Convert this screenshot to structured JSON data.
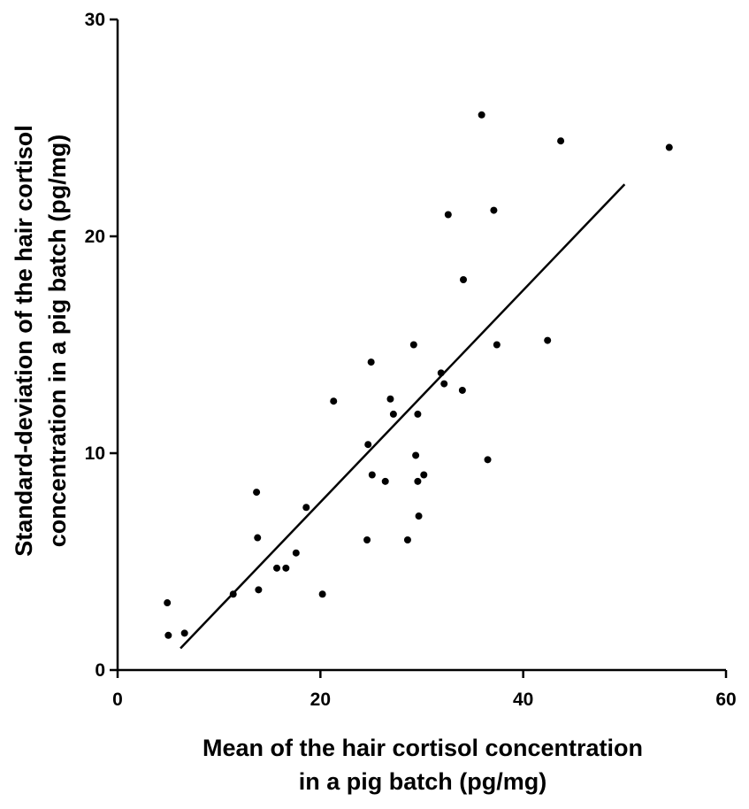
{
  "chart_data": {
    "type": "scatter",
    "xlabel_lines": [
      "Mean of the hair cortisol concentration",
      "in a pig batch (pg/mg)"
    ],
    "ylabel_lines": [
      "Standard-deviation of the hair cortisol",
      "concentration in a pig batch (pg/mg)"
    ],
    "xlim": [
      0,
      60
    ],
    "ylim": [
      0,
      30
    ],
    "xticks": [
      "0",
      "20",
      "40",
      "60"
    ],
    "yticks": [
      "0",
      "10",
      "20",
      "30"
    ],
    "grid": false,
    "points": [
      {
        "x": 4.9,
        "y": 3.1
      },
      {
        "x": 5.0,
        "y": 1.6
      },
      {
        "x": 6.6,
        "y": 1.7
      },
      {
        "x": 11.4,
        "y": 3.5
      },
      {
        "x": 13.7,
        "y": 8.2
      },
      {
        "x": 13.8,
        "y": 6.1
      },
      {
        "x": 13.9,
        "y": 3.7
      },
      {
        "x": 15.7,
        "y": 4.7
      },
      {
        "x": 16.6,
        "y": 4.7
      },
      {
        "x": 17.6,
        "y": 5.4
      },
      {
        "x": 18.6,
        "y": 7.5
      },
      {
        "x": 20.2,
        "y": 3.5
      },
      {
        "x": 21.3,
        "y": 12.4
      },
      {
        "x": 24.6,
        "y": 6.0
      },
      {
        "x": 24.7,
        "y": 10.4
      },
      {
        "x": 25.0,
        "y": 14.2
      },
      {
        "x": 25.1,
        "y": 9.0
      },
      {
        "x": 26.4,
        "y": 8.7
      },
      {
        "x": 26.9,
        "y": 12.5
      },
      {
        "x": 27.2,
        "y": 11.8
      },
      {
        "x": 28.6,
        "y": 6.0
      },
      {
        "x": 29.2,
        "y": 15.0
      },
      {
        "x": 29.4,
        "y": 9.9
      },
      {
        "x": 29.6,
        "y": 8.7
      },
      {
        "x": 29.6,
        "y": 11.8
      },
      {
        "x": 29.7,
        "y": 7.1
      },
      {
        "x": 30.2,
        "y": 9.0
      },
      {
        "x": 31.9,
        "y": 13.7
      },
      {
        "x": 32.2,
        "y": 13.2
      },
      {
        "x": 32.6,
        "y": 21.0
      },
      {
        "x": 34.0,
        "y": 12.9
      },
      {
        "x": 34.1,
        "y": 18.0
      },
      {
        "x": 35.9,
        "y": 25.6
      },
      {
        "x": 36.5,
        "y": 9.7
      },
      {
        "x": 37.1,
        "y": 21.2
      },
      {
        "x": 37.4,
        "y": 15.0
      },
      {
        "x": 42.4,
        "y": 15.2
      },
      {
        "x": 43.7,
        "y": 24.4
      },
      {
        "x": 54.4,
        "y": 24.1
      }
    ],
    "fit_line": {
      "x": [
        6.2,
        50.0
      ],
      "y": [
        1.0,
        22.4
      ]
    }
  }
}
